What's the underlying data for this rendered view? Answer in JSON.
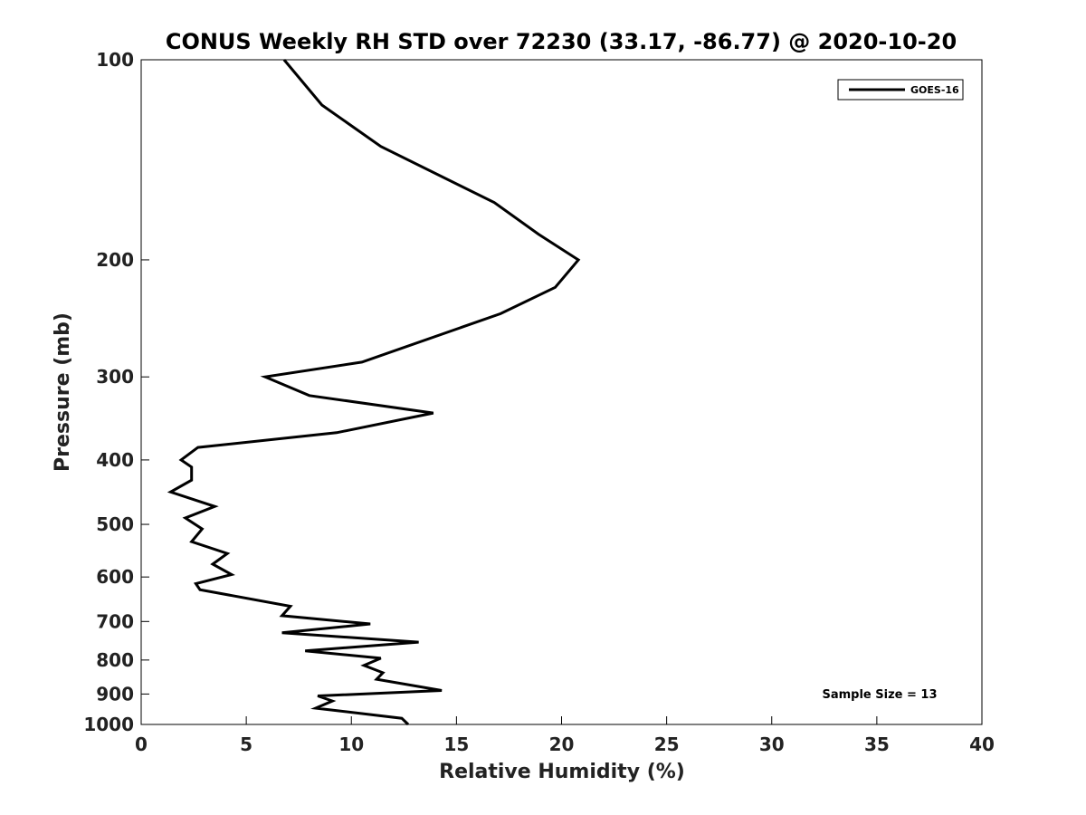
{
  "chart_data": {
    "type": "line",
    "title": "CONUS Weekly RH STD over 72230 (33.17, -86.77) @ 2020-10-20",
    "xlabel": "Relative Humidity (%)",
    "ylabel": "Pressure (mb)",
    "xlim": [
      0,
      40
    ],
    "ylim": [
      100,
      1000
    ],
    "y_scale": "log",
    "y_reversed": true,
    "x_ticks": [
      0,
      5,
      10,
      15,
      20,
      25,
      30,
      35,
      40
    ],
    "y_ticks": [
      100,
      200,
      300,
      400,
      500,
      600,
      700,
      800,
      900,
      1000
    ],
    "grid": false,
    "legend_position": "top-right",
    "series": [
      {
        "name": "GOES-16",
        "color": "#000000",
        "x": [
          6.8,
          8.6,
          11.4,
          16.8,
          18.9,
          20.8,
          19.7,
          17.1,
          10.5,
          5.9,
          8.0,
          13.9,
          9.3,
          2.7,
          1.9,
          2.4,
          2.4,
          1.4,
          3.5,
          2.1,
          2.9,
          2.4,
          4.1,
          3.4,
          4.3,
          2.6,
          2.8,
          7.1,
          6.7,
          10.9,
          6.7,
          13.2,
          7.8,
          11.4,
          10.6,
          11.5,
          11.2,
          14.3,
          8.4,
          9.1,
          8.3,
          12.4,
          12.7
        ],
        "y": [
          100,
          117,
          135,
          164,
          183,
          200,
          220,
          241,
          285,
          300,
          320,
          340,
          364,
          383,
          400,
          410,
          429,
          447,
          470,
          489,
          508,
          531,
          553,
          574,
          595,
          614,
          627,
          664,
          686,
          706,
          728,
          752,
          775,
          795,
          815,
          836,
          855,
          889,
          906,
          922,
          945,
          979,
          1000
        ]
      }
    ],
    "annotation": "Sample Size = 13"
  }
}
